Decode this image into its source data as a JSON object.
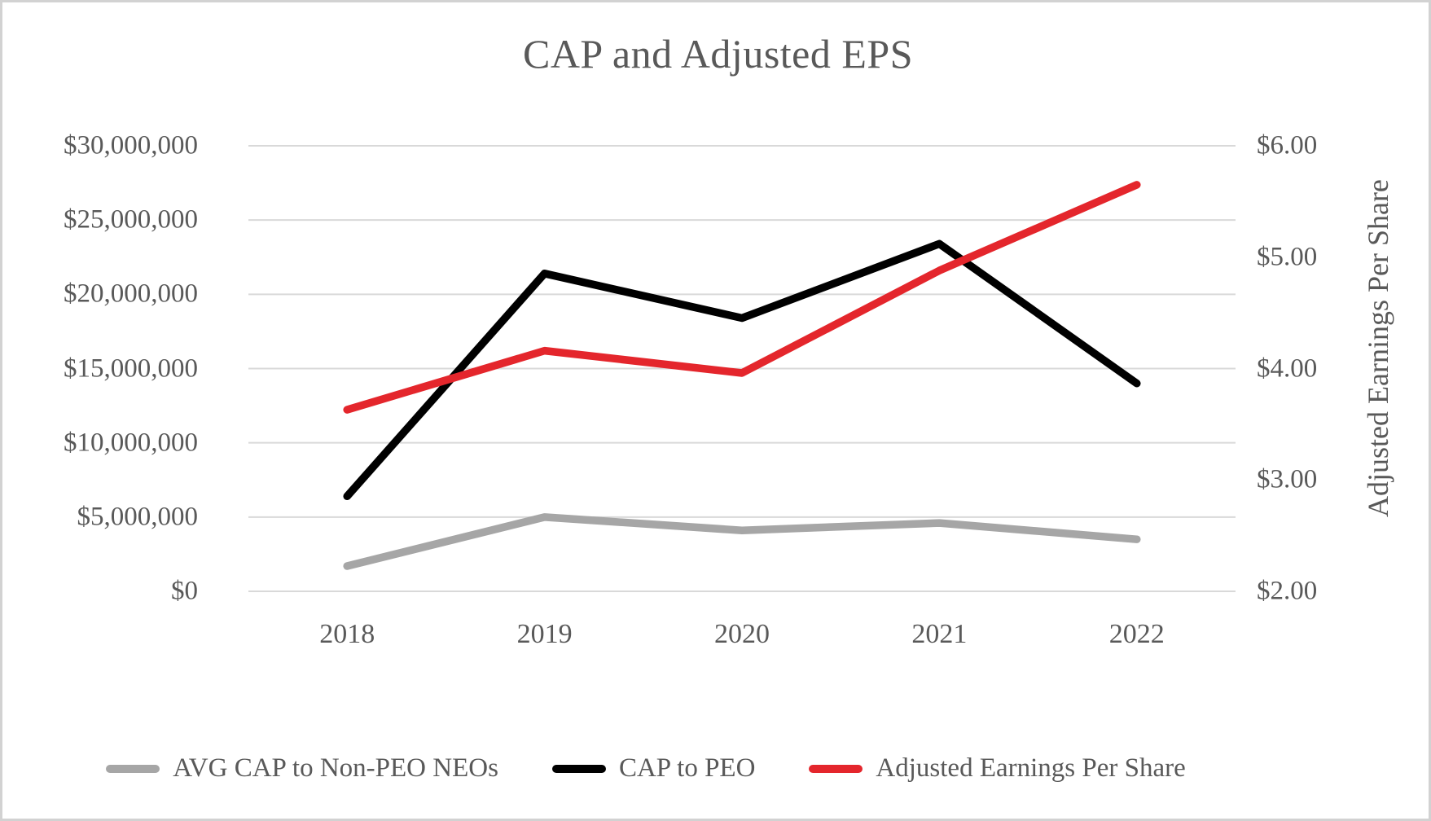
{
  "title": "CAP and Adjusted EPS",
  "colors": {
    "text": "#595959",
    "gridline": "#d9d9d9",
    "frame_border": "#d2d2d2",
    "series_avg_cap": "#a6a6a6",
    "series_cap_peo": "#000000",
    "series_eps": "#e4262c"
  },
  "chart_data": {
    "type": "line",
    "title": "CAP and Adjusted EPS",
    "categories": [
      "2018",
      "2019",
      "2020",
      "2021",
      "2022"
    ],
    "series": [
      {
        "name": "AVG CAP to Non-PEO NEOs",
        "axis": "left",
        "color": "#a6a6a6",
        "values": [
          1700000,
          5000000,
          4100000,
          4600000,
          3500000
        ]
      },
      {
        "name": "CAP to PEO",
        "axis": "left",
        "color": "#000000",
        "values": [
          6400000,
          21400000,
          18400000,
          23400000,
          14000000
        ]
      },
      {
        "name": "Adjusted Earnings Per Share",
        "axis": "right",
        "color": "#e4262c",
        "values": [
          3.63,
          4.16,
          3.96,
          4.88,
          5.65
        ]
      }
    ],
    "left_axis": {
      "min": 0,
      "max": 30000000,
      "ticks": [
        "$30,000,000",
        "$25,000,000",
        "$20,000,000",
        "$15,000,000",
        "$10,000,000",
        "$5,000,000",
        "$0"
      ]
    },
    "right_axis": {
      "title": "Adjusted Earnings Per Share",
      "min": 2,
      "max": 6,
      "ticks": [
        "$6.00",
        "$5.00",
        "$4.00",
        "$3.00",
        "$2.00"
      ]
    },
    "grid": true,
    "legend_position": "bottom"
  }
}
